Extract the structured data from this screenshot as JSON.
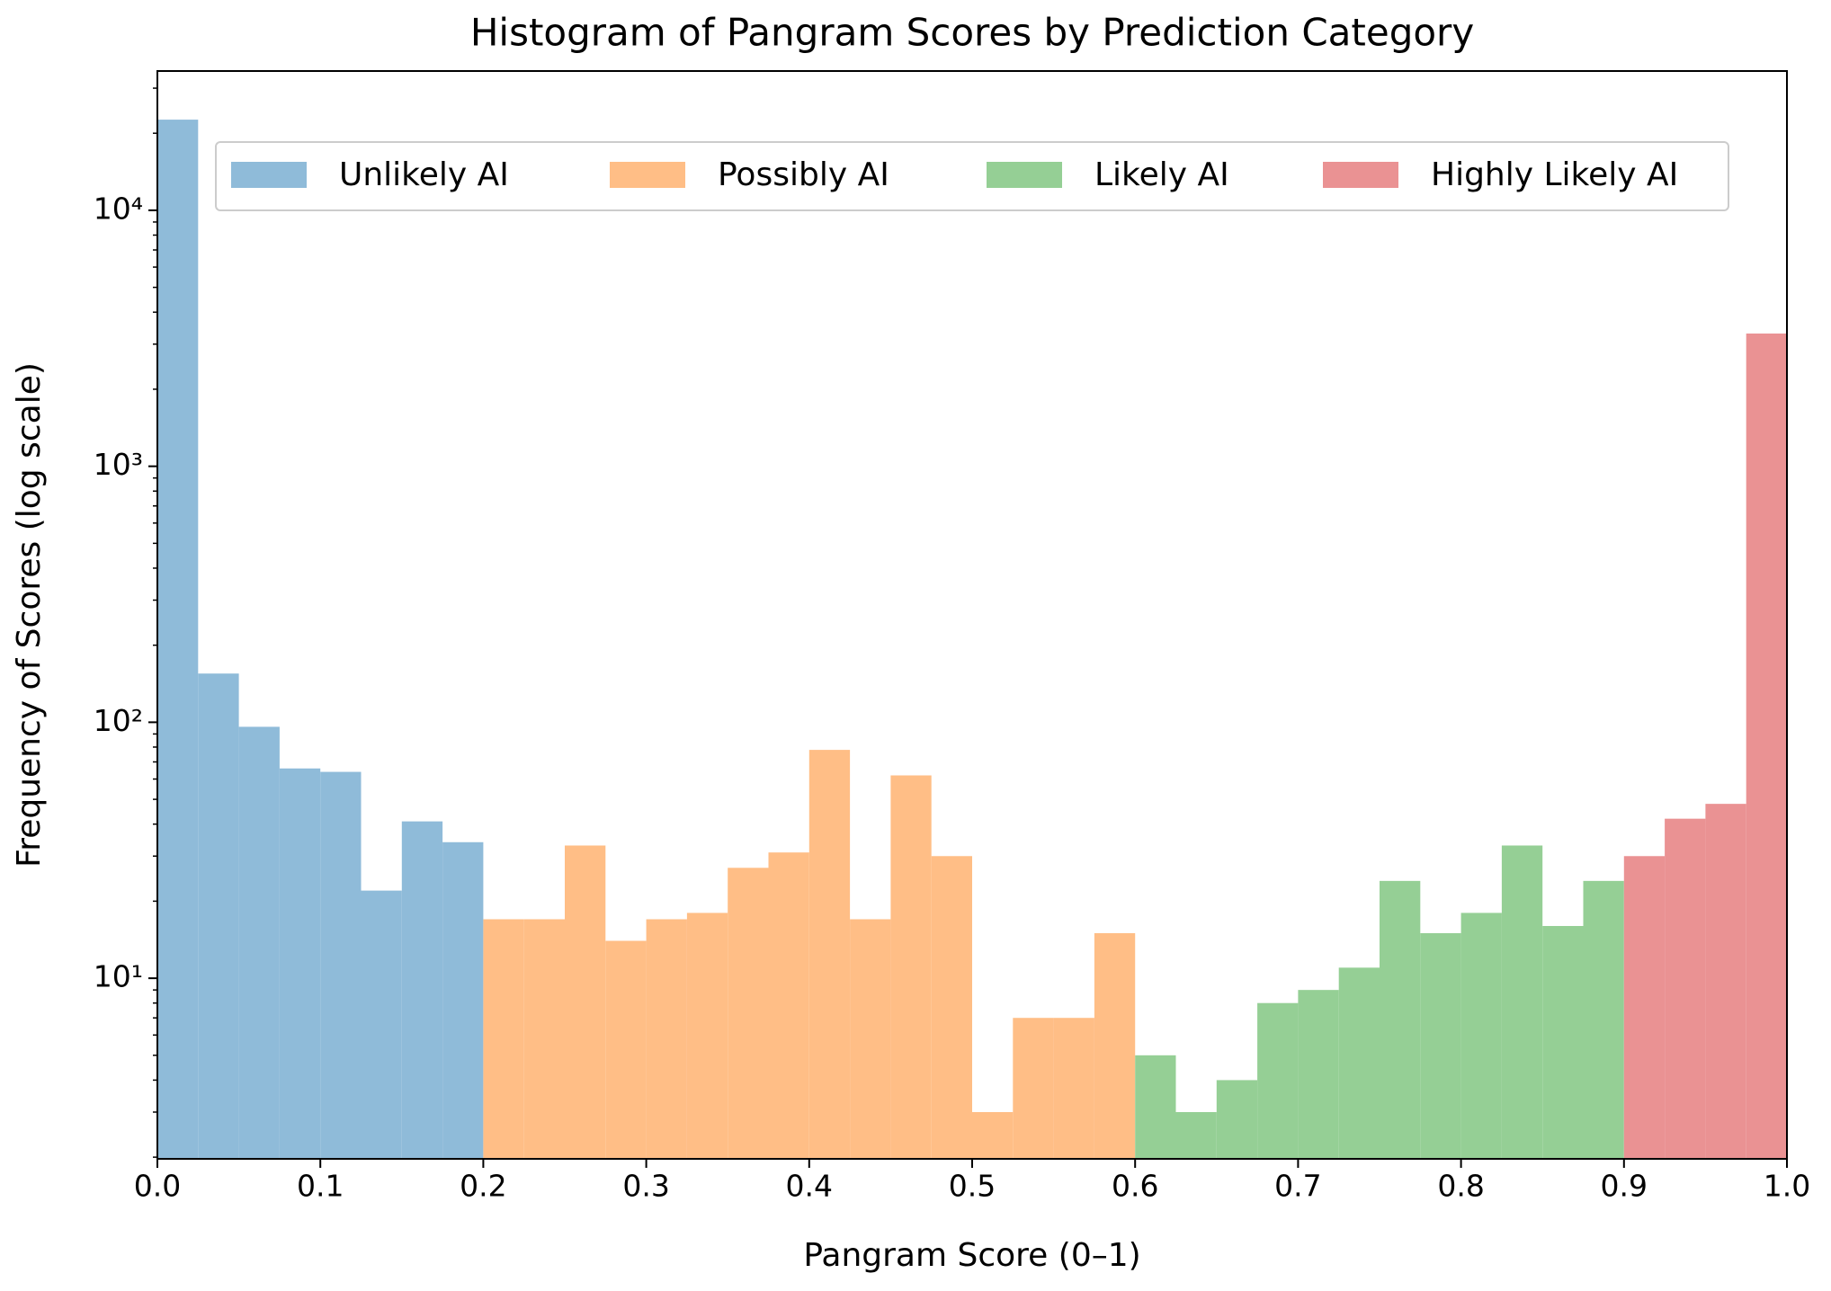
{
  "chart_data": {
    "type": "histogram",
    "title": "Histogram of Pangram Scores by Prediction Category",
    "xlabel": "Pangram Score (0–1)",
    "ylabel": "Frequency of Scores (log scale)",
    "log_y": true,
    "legend_loc": "upper center",
    "series": [
      {
        "name": "Unlikely AI",
        "color": "#8fbbd9",
        "bins": [
          0,
          0.025,
          0.05,
          0.075,
          0.1,
          0.125,
          0.15,
          0.175,
          0.2
        ],
        "values": [
          22600,
          155,
          96,
          66,
          64,
          22,
          41,
          34
        ]
      },
      {
        "name": "Possibly AI",
        "color": "#ffbe86",
        "bins": [
          0.2,
          0.225,
          0.25,
          0.275,
          0.3,
          0.325,
          0.35,
          0.375,
          0.4,
          0.425,
          0.45,
          0.475,
          0.5,
          0.525,
          0.55,
          0.575,
          0.6
        ],
        "values": [
          17,
          17,
          33,
          14,
          17,
          18,
          27,
          31,
          78,
          17,
          62,
          30,
          3,
          7,
          7,
          15
        ]
      },
      {
        "name": "Likely AI",
        "color": "#95cf95",
        "bins": [
          0.6,
          0.625,
          0.65,
          0.675,
          0.7,
          0.725,
          0.75,
          0.775,
          0.8,
          0.825,
          0.85,
          0.875,
          0.9
        ],
        "values": [
          5,
          3,
          4,
          8,
          9,
          11,
          24,
          15,
          18,
          33,
          16,
          24
        ]
      },
      {
        "name": "Highly Likely AI",
        "color": "#ea9293",
        "bins": [
          0.9,
          0.925,
          0.95,
          0.975,
          1
        ],
        "values": [
          30,
          42,
          48,
          3300
        ]
      }
    ],
    "xlim": [
      0,
      1
    ],
    "xticks": [
      {
        "value": 0,
        "label": "0.0"
      },
      0.1,
      0.2,
      0.3,
      0.4,
      0.5,
      0.6,
      0.7,
      0.8,
      0.9,
      {
        "value": 1,
        "label": "1.0"
      }
    ],
    "ylim": [
      1.97,
      35000
    ],
    "yticks": [
      {
        "value": 10,
        "label": "10¹"
      },
      {
        "value": 100,
        "label": "10²"
      },
      {
        "value": 1000,
        "label": "10³"
      },
      {
        "value": 10000,
        "label": "10⁴"
      }
    ],
    "yminorticks": [
      2,
      3,
      4,
      5,
      6,
      7,
      8,
      9,
      20,
      30,
      40,
      50,
      60,
      70,
      80,
      90,
      200,
      300,
      400,
      500,
      600,
      700,
      800,
      900,
      2000,
      3000,
      4000,
      5000,
      6000,
      7000,
      8000,
      9000,
      20000,
      30000
    ]
  }
}
